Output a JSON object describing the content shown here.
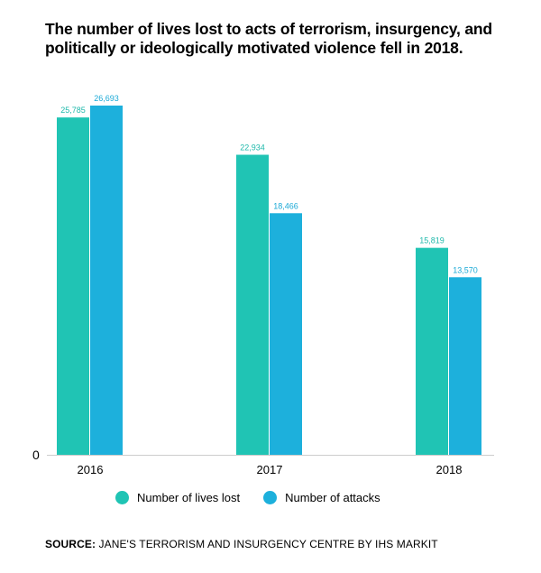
{
  "title": "The number of lives lost to acts of terrorism, insurgency, and politically or ideologically motivated violence fell in 2018.",
  "source": {
    "label": "SOURCE:",
    "text": "JANE'S TERRORISM AND INSURGENCY CENTRE BY IHS MARKIT"
  },
  "colors": {
    "lives": "#20c4b4",
    "attacks": "#1db0dc",
    "lives_label": "#1fb9ab",
    "attacks_label": "#1aa9d6",
    "axis": "#cccccc"
  },
  "chart_data": {
    "type": "bar",
    "categories": [
      "2016",
      "2017",
      "2018"
    ],
    "series": [
      {
        "name": "Number of lives lost",
        "values": [
          25785,
          22934,
          15819
        ],
        "labels": [
          "25,785",
          "22,934",
          "15,819"
        ]
      },
      {
        "name": "Number of attacks",
        "values": [
          26693,
          18466,
          13570
        ],
        "labels": [
          "26,693",
          "18,466",
          "13,570"
        ]
      }
    ],
    "ylim": [
      0,
      26693
    ],
    "y_tick_labels": [
      "0"
    ],
    "legend_position": "bottom"
  }
}
